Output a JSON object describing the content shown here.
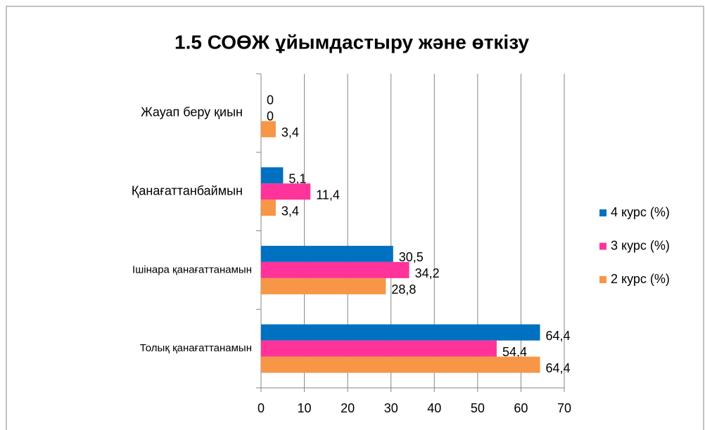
{
  "chart_data": {
    "type": "bar",
    "orientation": "horizontal",
    "title": "1.5 СОӨЖ ұйымдастыру және өткізу",
    "categories": [
      "Жауап беру қиын",
      "Қанағаттанбаймын",
      "Ішінара қанағаттанамын",
      "Толық қанағаттанамын"
    ],
    "series": [
      {
        "name": "4 курс (%)",
        "color": "#0070c0",
        "values": [
          0,
          5.1,
          30.5,
          64.4
        ],
        "value_labels": [
          "0",
          "5,1",
          "30,5",
          "64,4"
        ]
      },
      {
        "name": "3 курс (%)",
        "color": "#ff3399",
        "values": [
          0,
          11.4,
          34.2,
          54.4
        ],
        "value_labels": [
          "0",
          "11,4",
          "34,2",
          "54,4"
        ]
      },
      {
        "name": "2 курс (%)",
        "color": "#f79646",
        "values": [
          3.4,
          3.4,
          28.8,
          64.4
        ],
        "value_labels": [
          "3,4",
          "3,4",
          "28,8",
          "64,4"
        ]
      }
    ],
    "xlim": [
      0,
      70
    ],
    "xticks": [
      0,
      10,
      20,
      30,
      40,
      50,
      60,
      70
    ],
    "grid": true,
    "legend": "right"
  }
}
